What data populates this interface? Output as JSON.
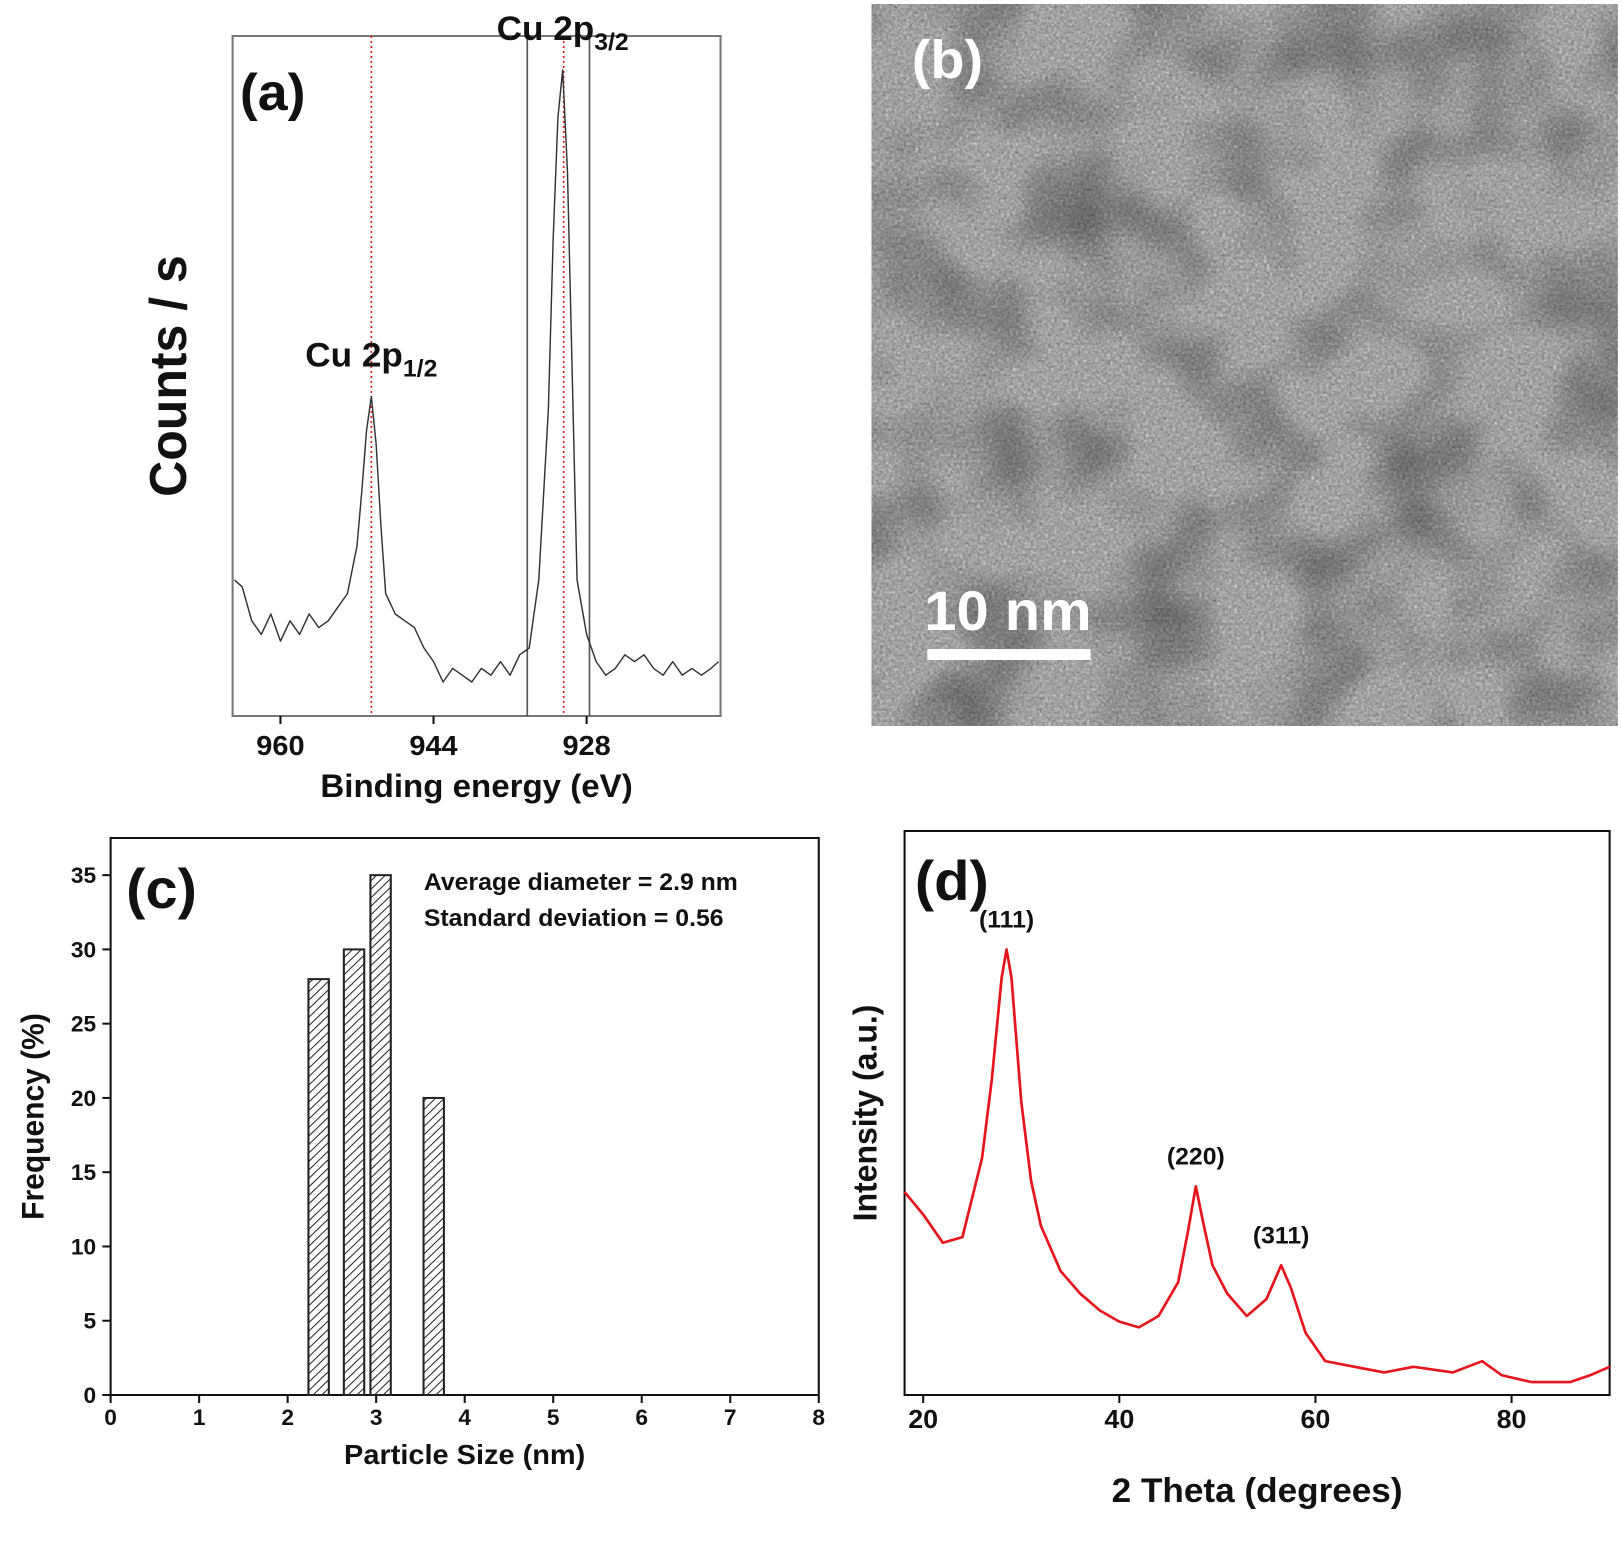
{
  "chart_data": [
    {
      "type": "line",
      "panel_label": "(a)",
      "x_label": "Binding energy (eV)",
      "y_label": "Counts / s",
      "xlim": [
        965,
        914
      ],
      "ylim": [
        0,
        100
      ],
      "xticks": [
        960,
        944,
        928
      ],
      "series": [
        {
          "color": "#333333",
          "x": [
            964.8,
            964,
            963,
            962,
            961,
            960,
            959,
            958,
            957,
            956,
            955,
            954,
            953,
            952,
            951.5,
            951,
            950.5,
            950,
            949.5,
            949,
            948,
            947,
            946,
            945,
            944,
            943,
            942,
            941,
            940,
            939,
            938,
            937,
            936,
            935,
            934,
            933,
            932,
            931.5,
            931,
            930.5,
            930,
            929.5,
            929,
            928,
            927,
            926,
            925,
            924,
            923,
            922,
            921,
            920,
            919,
            918,
            917,
            916,
            915,
            914.2
          ],
          "values": [
            20,
            19,
            14,
            12,
            15,
            11,
            14,
            12,
            15,
            13,
            14,
            16,
            18,
            25,
            33,
            42,
            47,
            40,
            28,
            18,
            15,
            14,
            13,
            10,
            8,
            5,
            7,
            6,
            5,
            7,
            6,
            8,
            6,
            9,
            10,
            20,
            45,
            70,
            88,
            95,
            80,
            50,
            20,
            12,
            8,
            6,
            7,
            9,
            8,
            9,
            7,
            6,
            8,
            6,
            7,
            6,
            7,
            8
          ]
        }
      ],
      "reference_lines": [
        {
          "x": 950.5,
          "color": "#e02020",
          "style": "dotted"
        },
        {
          "x": 930.4,
          "color": "#e02020",
          "style": "dotted"
        },
        {
          "x": 934.2,
          "color": "#555555",
          "style": "solid"
        },
        {
          "x": 927.7,
          "color": "#555555",
          "style": "solid"
        }
      ],
      "annotations": [
        {
          "text": "Cu 2p",
          "sub": "1/2",
          "x": 950.5,
          "y": 47
        },
        {
          "text": "Cu 2p",
          "sub": "3/2",
          "x": 930.5,
          "y": 95
        }
      ]
    },
    {
      "type": "bar",
      "panel_label": "(c)",
      "x_label": "Particle Size (nm)",
      "y_label": "Frequency (%)",
      "xlim": [
        0,
        8
      ],
      "ylim": [
        0,
        37.5
      ],
      "xticks": [
        0,
        1,
        2,
        3,
        4,
        5,
        6,
        7,
        8
      ],
      "yticks": [
        0,
        5,
        10,
        15,
        20,
        25,
        30,
        35
      ],
      "x": [
        2.35,
        2.75,
        3.05,
        3.65
      ],
      "values": [
        28,
        30,
        35,
        20
      ],
      "color": "#222222",
      "notes": [
        "Average diameter = 2.9 nm",
        "Standard deviation = 0.56"
      ]
    },
    {
      "type": "line",
      "panel_label": "(d)",
      "x_label": "2 Theta (degrees)",
      "y_label": "Intensity (a.u.)",
      "xlim": [
        18.1,
        90
      ],
      "ylim": [
        0,
        100
      ],
      "xticks": [
        20,
        40,
        60,
        80
      ],
      "series": [
        {
          "color": "#e8141c",
          "x": [
            18.1,
            20,
            22,
            24,
            26,
            27,
            28,
            28.5,
            29,
            30,
            31,
            32,
            34,
            36,
            38,
            40,
            42,
            44,
            46,
            47,
            47.8,
            48.5,
            49.5,
            51,
            53,
            55,
            56.5,
            57.5,
            59,
            61,
            64,
            67,
            70,
            74,
            77,
            79,
            82,
            86,
            88,
            90
          ],
          "values": [
            36,
            32,
            27,
            28,
            42,
            56,
            74,
            79,
            74,
            52,
            38,
            30,
            22,
            18,
            15,
            13,
            12,
            14,
            20,
            29,
            37,
            31,
            23,
            18,
            14,
            17,
            23,
            19,
            11,
            6,
            5,
            4,
            5,
            4,
            6,
            3.5,
            2.3,
            2.3,
            3.5,
            5
          ]
        }
      ],
      "annotations": [
        {
          "text": "(111)",
          "x": 28.5,
          "y": 79
        },
        {
          "text": "(220)",
          "x": 47.8,
          "y": 37
        },
        {
          "text": "(311)",
          "x": 56.5,
          "y": 23
        }
      ]
    }
  ],
  "micrograph": {
    "panel_label": "(b)",
    "scale_bar": "10 nm"
  }
}
